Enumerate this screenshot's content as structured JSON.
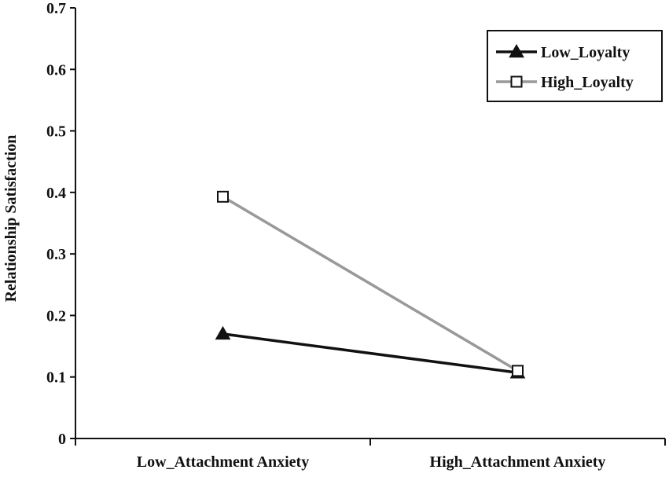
{
  "chart_data": {
    "type": "line",
    "title": "",
    "xlabel": "",
    "ylabel": "Relationship Satisfaction",
    "ylim": [
      0,
      0.7
    ],
    "yticks": [
      "0",
      "0.1",
      "0.2",
      "0.3",
      "0.4",
      "0.5",
      "0.6",
      "0.7"
    ],
    "categories": [
      "Low_Attachment Anxiety",
      "High_Attachment Anxiety"
    ],
    "grid": false,
    "legend_position": "top-right",
    "series": [
      {
        "name": "Low_Loyalty",
        "values": [
          0.17,
          0.107
        ],
        "color": "#111111",
        "marker": "filled-triangle"
      },
      {
        "name": "High_Loyalty",
        "values": [
          0.393,
          0.11
        ],
        "color": "#999999",
        "marker": "open-square"
      }
    ]
  }
}
